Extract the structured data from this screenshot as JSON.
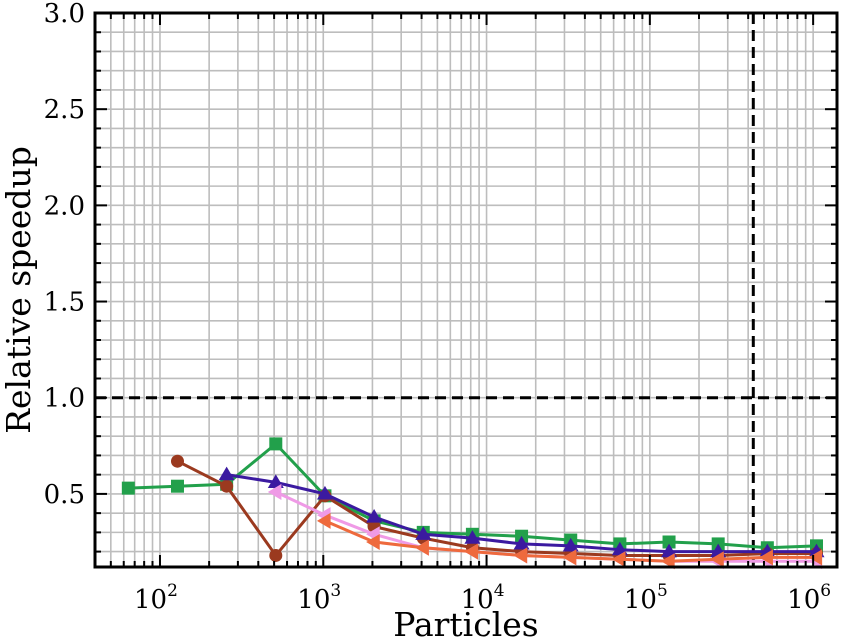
{
  "chart_data": {
    "type": "line",
    "title": "",
    "xlabel": "Particles",
    "ylabel": "Relative speedup",
    "xscale": "log",
    "xlim": [
      40,
      1400000
    ],
    "ylim": [
      0.12,
      3.0
    ],
    "yticks": [
      0.5,
      1.0,
      1.5,
      2.0,
      2.5,
      3.0
    ],
    "ytick_labels": [
      "0.5",
      "1.0",
      "1.5",
      "2.0",
      "2.5",
      "3.0"
    ],
    "xtick_labels": [
      {
        "base": "10",
        "exp": "2",
        "value": 100
      },
      {
        "base": "10",
        "exp": "3",
        "value": 1000
      },
      {
        "base": "10",
        "exp": "4",
        "value": 10000
      },
      {
        "base": "10",
        "exp": "5",
        "value": 100000
      },
      {
        "base": "10",
        "exp": "6",
        "value": 1000000
      }
    ],
    "grid": true,
    "reference_lines": [
      {
        "orientation": "horizontal",
        "value": 1.0,
        "style": "dashed",
        "color": "#000000"
      },
      {
        "orientation": "vertical",
        "value": 430000,
        "style": "dashed",
        "color": "#000000"
      }
    ],
    "series": [
      {
        "name": "green squares",
        "color": "#22a04b",
        "marker": "square",
        "x": [
          64,
          128,
          256,
          512,
          1024,
          2048,
          4096,
          8192,
          16384,
          32768,
          65536,
          131072,
          262144,
          524288,
          1048576
        ],
        "y": [
          0.53,
          0.54,
          0.55,
          0.76,
          0.49,
          0.36,
          0.3,
          0.29,
          0.28,
          0.26,
          0.24,
          0.25,
          0.24,
          0.22,
          0.23
        ]
      },
      {
        "name": "brown circles",
        "color": "#9b3a1f",
        "marker": "circle",
        "x": [
          128,
          256,
          512,
          1024,
          2048,
          4096,
          8192,
          16384,
          32768,
          65536,
          131072,
          262144,
          524288,
          1048576
        ],
        "y": [
          0.67,
          0.54,
          0.18,
          0.49,
          0.33,
          0.27,
          0.22,
          0.2,
          0.19,
          0.18,
          0.18,
          0.18,
          0.19,
          0.19
        ]
      },
      {
        "name": "indigo triangles",
        "color": "#3b1aa0",
        "marker": "triangle-up",
        "x": [
          256,
          512,
          1024,
          2048,
          4096,
          8192,
          16384,
          32768,
          65536,
          131072,
          262144,
          524288,
          1048576
        ],
        "y": [
          0.6,
          0.56,
          0.5,
          0.38,
          0.29,
          0.27,
          0.24,
          0.23,
          0.21,
          0.2,
          0.2,
          0.2,
          0.2
        ]
      },
      {
        "name": "pink left triangles",
        "color": "#ef9ae6",
        "marker": "triangle-left",
        "x": [
          512,
          1024,
          2048,
          4096,
          8192,
          16384,
          32768,
          65536,
          131072,
          262144,
          524288,
          1048576
        ],
        "y": [
          0.51,
          0.39,
          0.29,
          0.22,
          0.2,
          0.18,
          0.17,
          0.16,
          0.15,
          0.15,
          0.15,
          0.15
        ]
      },
      {
        "name": "orange left triangles",
        "color": "#ee6a3d",
        "marker": "triangle-left",
        "x": [
          1024,
          2048,
          4096,
          8192,
          16384,
          32768,
          65536,
          131072,
          262144,
          524288,
          1048576
        ],
        "y": [
          0.36,
          0.25,
          0.22,
          0.2,
          0.18,
          0.17,
          0.16,
          0.15,
          0.16,
          0.17,
          0.17
        ]
      }
    ]
  }
}
